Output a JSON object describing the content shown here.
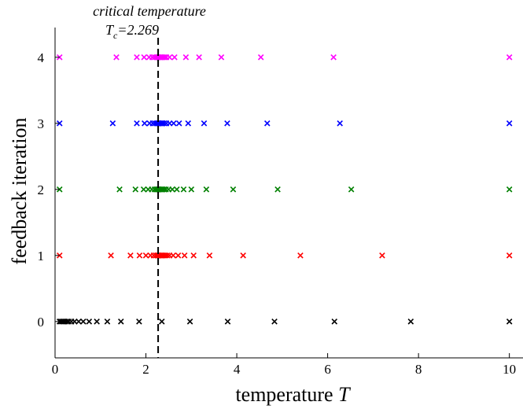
{
  "chart_data": {
    "type": "scatter",
    "xlabel": "temperature",
    "xlabel_symbol": "T",
    "ylabel": "feedback iteration",
    "xlim": [
      0,
      10.3
    ],
    "ylim": [
      -0.55,
      4.45
    ],
    "xticks": [
      0,
      2,
      4,
      6,
      8,
      10
    ],
    "yticks": [
      0,
      1,
      2,
      3,
      4
    ],
    "grid": false,
    "critical": {
      "value": 2.269,
      "caption": "critical temperature",
      "symbol": "T",
      "subscript": "c",
      "value_text": "=2.269"
    },
    "series": [
      {
        "iteration": 0,
        "color": "#000000",
        "x": [
          0.1,
          0.13,
          0.16,
          0.19,
          0.22,
          0.26,
          0.3,
          0.36,
          0.43,
          0.52,
          0.62,
          0.75,
          0.92,
          1.15,
          1.45,
          1.85,
          2.35,
          2.97,
          3.8,
          4.83,
          6.15,
          7.83,
          10.0
        ]
      },
      {
        "iteration": 1,
        "color": "#ff0000",
        "x": [
          0.1,
          1.23,
          1.66,
          1.86,
          2.0,
          2.1,
          2.17,
          2.22,
          2.25,
          2.27,
          2.29,
          2.31,
          2.33,
          2.35,
          2.37,
          2.4,
          2.43,
          2.47,
          2.52,
          2.6,
          2.71,
          2.85,
          3.05,
          3.4,
          4.14,
          5.4,
          7.2,
          10.0
        ]
      },
      {
        "iteration": 2,
        "color": "#008000",
        "x": [
          0.1,
          1.42,
          1.77,
          1.95,
          2.05,
          2.13,
          2.19,
          2.23,
          2.25,
          2.27,
          2.29,
          2.31,
          2.33,
          2.35,
          2.37,
          2.4,
          2.44,
          2.5,
          2.58,
          2.68,
          2.83,
          3.0,
          3.33,
          3.92,
          4.9,
          6.52,
          10.0
        ]
      },
      {
        "iteration": 3,
        "color": "#0000ff",
        "x": [
          0.1,
          1.27,
          1.8,
          1.97,
          2.08,
          2.15,
          2.2,
          2.24,
          2.26,
          2.27,
          2.29,
          2.31,
          2.33,
          2.35,
          2.37,
          2.4,
          2.45,
          2.52,
          2.61,
          2.73,
          2.93,
          3.28,
          3.79,
          4.67,
          6.27,
          10.0
        ]
      },
      {
        "iteration": 4,
        "color": "#ff00ff",
        "x": [
          0.1,
          1.35,
          1.8,
          1.96,
          2.07,
          2.14,
          2.19,
          2.23,
          2.25,
          2.27,
          2.29,
          2.31,
          2.33,
          2.35,
          2.38,
          2.41,
          2.45,
          2.52,
          2.63,
          2.88,
          3.17,
          3.66,
          4.53,
          6.13,
          10.0
        ]
      }
    ]
  }
}
